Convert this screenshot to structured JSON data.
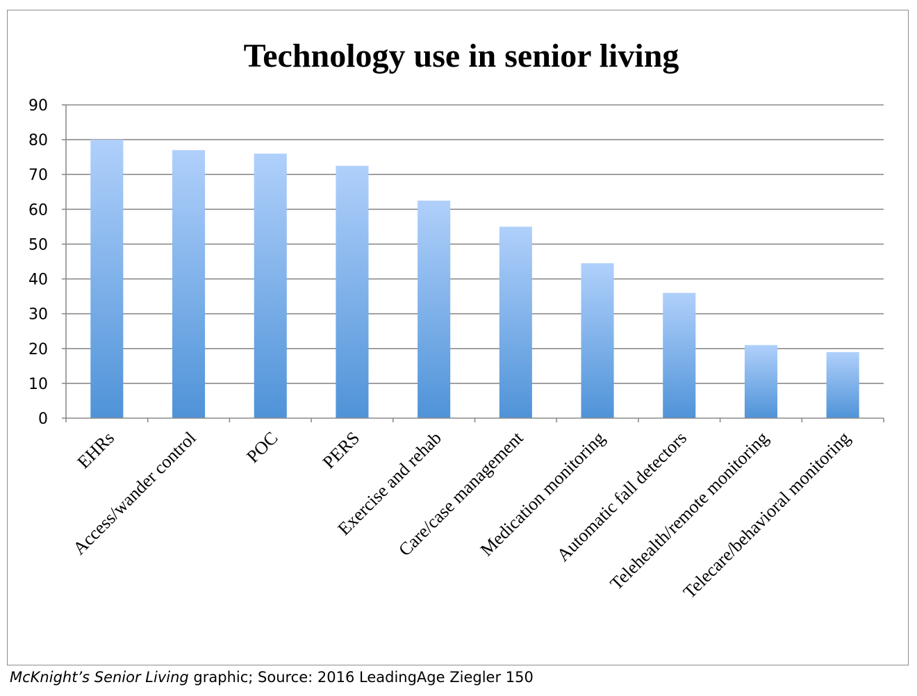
{
  "chart_data": {
    "type": "bar",
    "title": "Technology use in senior living",
    "categories": [
      "EHRs",
      "Access/wander control",
      "POC",
      "PERS",
      "Exercise and rehab",
      "Care/case management",
      "Medication monitoring",
      "Automatic fall detectors",
      "Telehealth/remote monitoring",
      "Telecare/behavioral monitoring"
    ],
    "values": [
      80,
      77,
      76,
      72.5,
      62.5,
      55,
      44.5,
      36,
      21,
      19
    ],
    "xlabel": "",
    "ylabel": "",
    "ylim": [
      0,
      90
    ],
    "yticks": [
      0,
      10,
      20,
      30,
      40,
      50,
      60,
      70,
      80,
      90
    ],
    "grid": true,
    "legend": "none",
    "colors": {
      "bar_top": "#b0d0fb",
      "bar_bottom": "#4f93d8",
      "gridline": "#8a8a8a",
      "axis": "#8a8a8a"
    }
  },
  "caption": {
    "italic": "McKnight’s Senior Living",
    "rest": " graphic; Source: 2016 LeadingAge Ziegler 150"
  }
}
